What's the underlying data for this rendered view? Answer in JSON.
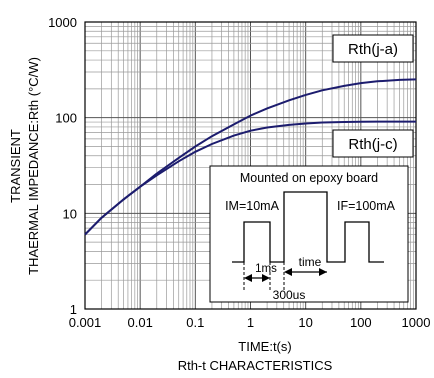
{
  "chart_data": {
    "type": "line",
    "title": "",
    "caption": "Rth-t CHARACTERISTICS",
    "xlabel": "TIME:t(s)",
    "ylabel_line1": "TRANSIENT",
    "ylabel_line2": "THAERMAL IMPEDANCE:Rth (°C/W)",
    "x_scale": "log",
    "y_scale": "log",
    "xlim": [
      0.001,
      1000
    ],
    "ylim": [
      1,
      1000
    ],
    "x_ticks": [
      "0.001",
      "0.01",
      "0.1",
      "1",
      "10",
      "100",
      "1000"
    ],
    "y_ticks": [
      "1",
      "10",
      "100",
      "1000"
    ],
    "grid": true,
    "line_color": "#1c1c6e",
    "series": [
      {
        "name": "Rth(j-a)",
        "x": [
          0.001,
          0.002,
          0.005,
          0.01,
          0.02,
          0.05,
          0.1,
          0.2,
          0.5,
          1,
          2,
          5,
          10,
          20,
          50,
          100,
          200,
          500,
          1000
        ],
        "y": [
          6,
          9,
          14,
          19,
          26,
          38,
          50,
          64,
          85,
          105,
          125,
          152,
          173,
          193,
          215,
          230,
          240,
          248,
          251
        ]
      },
      {
        "name": "Rth(j-c)",
        "x": [
          0.001,
          0.002,
          0.005,
          0.01,
          0.02,
          0.05,
          0.1,
          0.2,
          0.5,
          1,
          2,
          5,
          10,
          20,
          50,
          100,
          200,
          500,
          1000
        ],
        "y": [
          6,
          9,
          14,
          19,
          25,
          35,
          44,
          53,
          65,
          73,
          79,
          84,
          87,
          89,
          90,
          90.5,
          91,
          91,
          91
        ]
      }
    ],
    "inset": {
      "title": "Mounted on epoxy board",
      "im_label": "IM=10mA",
      "if_label": "IF=100mA",
      "time_label": "time",
      "t1_label": "1ms",
      "t2_label": "300us"
    }
  }
}
